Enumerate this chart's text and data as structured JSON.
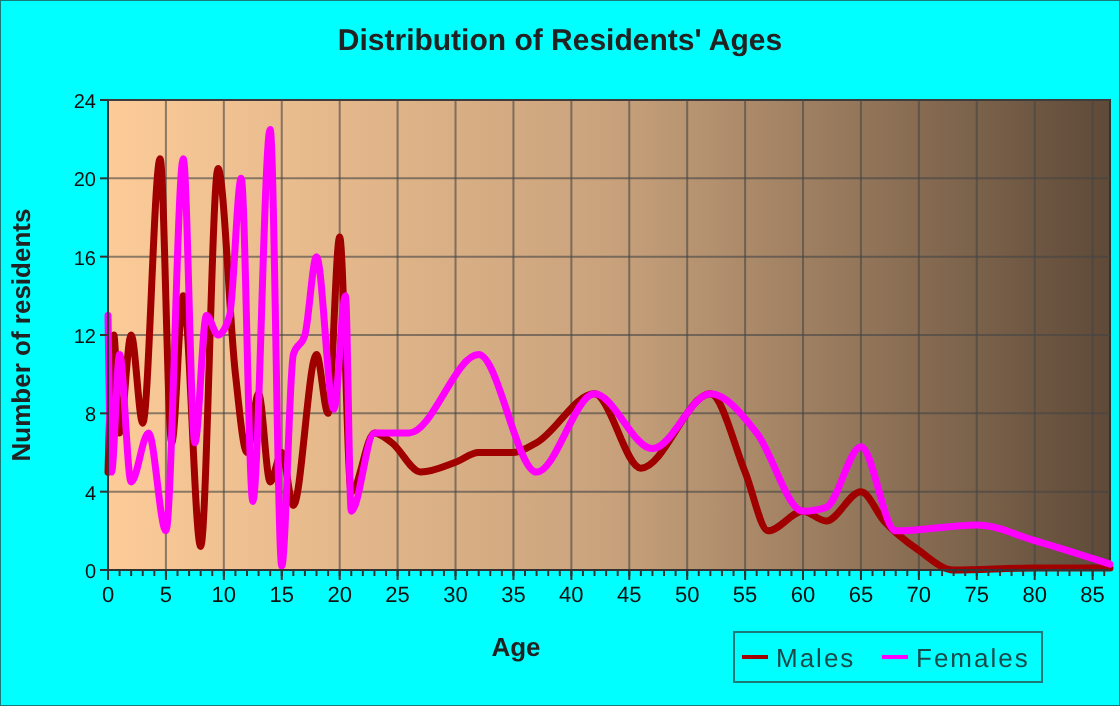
{
  "chart_data": {
    "type": "line",
    "title": "Distribution of Residents' Ages",
    "xlabel": "Age",
    "ylabel": "Number of residents",
    "xlim": [
      0,
      86.5
    ],
    "xticks": [
      0,
      5,
      10,
      15,
      20,
      25,
      30,
      35,
      40,
      45,
      50,
      55,
      60,
      65,
      70,
      75,
      80,
      85
    ],
    "ylim": [
      0,
      24
    ],
    "yticks": [
      0,
      4,
      8,
      12,
      16,
      20,
      24
    ],
    "grid": true,
    "legend": "bottom",
    "series": [
      {
        "name": "Males",
        "color": "#a00000",
        "x": [
          0,
          0.5,
          1,
          2,
          3,
          4.5,
          5.5,
          6.5,
          8,
          9.5,
          11,
          12,
          13,
          14,
          15,
          16,
          18,
          19,
          20,
          21,
          23,
          24.5,
          27,
          30,
          32,
          35,
          37,
          42,
          46,
          52,
          55,
          57,
          60,
          62,
          65,
          67,
          70,
          73,
          80,
          86.5
        ],
        "values": [
          5,
          12,
          7,
          12,
          7.5,
          21,
          6.5,
          14,
          1.2,
          20.5,
          10,
          6,
          9,
          4.5,
          6,
          3.3,
          11,
          8,
          17,
          4,
          7,
          6.5,
          5,
          5.5,
          6,
          6,
          6.5,
          9,
          5.2,
          9,
          5,
          2,
          3,
          2.5,
          4,
          2.5,
          1,
          0,
          0.1,
          0.1
        ]
      },
      {
        "name": "Females",
        "color": "#ff00ff",
        "x": [
          0,
          0.3,
          1,
          2,
          3.5,
          5,
          6.5,
          7.5,
          8.5,
          9.5,
          10.5,
          11.5,
          12.5,
          14,
          15,
          16,
          17,
          18,
          19.5,
          20.5,
          21,
          23,
          26,
          32,
          37,
          42,
          47,
          52,
          56,
          60,
          62,
          65,
          68,
          75,
          80,
          86.5
        ],
        "values": [
          13,
          5,
          11,
          4.5,
          7,
          2,
          21,
          6.5,
          13,
          12,
          13,
          20,
          3.5,
          22.5,
          0.2,
          11,
          12,
          16,
          8.2,
          14,
          3,
          7,
          7,
          11,
          5,
          9,
          6.2,
          9,
          7,
          3,
          3.2,
          6.3,
          2,
          2.3,
          1.5,
          0.3
        ]
      }
    ]
  }
}
